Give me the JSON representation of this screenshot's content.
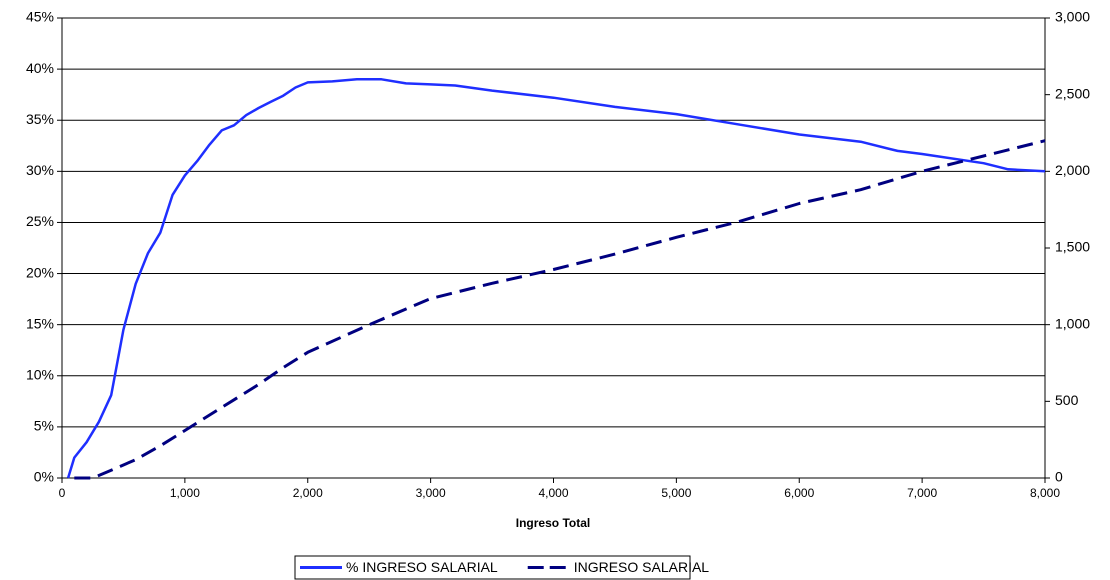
{
  "chart_data": {
    "type": "line",
    "xlabel": "Ingreso Total",
    "xlim": [
      0,
      8000
    ],
    "xticks": [
      0,
      {
        "value": 1000,
        "label": "1,000"
      },
      {
        "value": 2000,
        "label": "2,000"
      },
      {
        "value": 3000,
        "label": "3,000"
      },
      {
        "value": 4000,
        "label": "4,000"
      },
      {
        "value": 5000,
        "label": "5,000"
      },
      {
        "value": 6000,
        "label": "6,000"
      },
      {
        "value": 7000,
        "label": "7,000"
      },
      {
        "value": 8000,
        "label": "8,000"
      }
    ],
    "ylim": [
      0,
      45
    ],
    "yticks": [
      {
        "value": 0,
        "label": "0%"
      },
      {
        "value": 5,
        "label": "5%"
      },
      {
        "value": 10,
        "label": "10%"
      },
      {
        "value": 15,
        "label": "15%"
      },
      {
        "value": 20,
        "label": "20%"
      },
      {
        "value": 25,
        "label": "25%"
      },
      {
        "value": 30,
        "label": "30%"
      },
      {
        "value": 35,
        "label": "35%"
      },
      {
        "value": 40,
        "label": "40%"
      },
      {
        "value": 45,
        "label": "45%"
      }
    ],
    "y2lim": [
      0,
      3000
    ],
    "y2ticks": [
      0,
      500,
      {
        "value": 1000,
        "label": "1,000"
      },
      {
        "value": 1500,
        "label": "1,500"
      },
      {
        "value": 2000,
        "label": "2,000"
      },
      {
        "value": 2500,
        "label": "2,500"
      },
      {
        "value": 3000,
        "label": "3,000"
      }
    ],
    "grid": true,
    "legend": "bottom",
    "series": [
      {
        "name": "% INGRESO SALARIAL",
        "color": "#1f2fff",
        "style": "solid",
        "x": [
          50,
          100,
          200,
          300,
          400,
          500,
          600,
          700,
          800,
          900,
          1000,
          1100,
          1200,
          1300,
          1400,
          1500,
          1600,
          1700,
          1800,
          1900,
          2000,
          2200,
          2400,
          2600,
          2800,
          3000,
          3200,
          3500,
          4000,
          4500,
          5000,
          5500,
          6000,
          6500,
          6800,
          7000,
          7500,
          7700,
          8000
        ],
        "values": [
          0,
          2,
          3.5,
          5.5,
          8.1,
          14.5,
          19,
          22,
          24,
          27.7,
          29.6,
          31,
          32.6,
          34,
          34.5,
          35.5,
          36.2,
          36.8,
          37.4,
          38.2,
          38.7,
          38.8,
          39,
          39,
          38.6,
          38.5,
          38.4,
          37.9,
          37.2,
          36.3,
          35.6,
          34.6,
          33.6,
          32.9,
          32,
          31.7,
          30.8,
          30.2,
          30
        ]
      },
      {
        "name": "INGRESO SALARIAL",
        "color": "#000080",
        "style": "dashed",
        "axis": "y2",
        "x": [
          100,
          250,
          400,
          600,
          800,
          1000,
          1200,
          1400,
          1600,
          1800,
          2000,
          2500,
          3000,
          3500,
          4000,
          4500,
          5000,
          5500,
          6000,
          6500,
          7000,
          7500,
          8000
        ],
        "values": [
          0,
          0,
          50,
          120,
          210,
          310,
          410,
          510,
          610,
          720,
          820,
          1000,
          1170,
          1270,
          1360,
          1460,
          1570,
          1670,
          1790,
          1880,
          2000,
          2100,
          2200
        ]
      }
    ]
  }
}
